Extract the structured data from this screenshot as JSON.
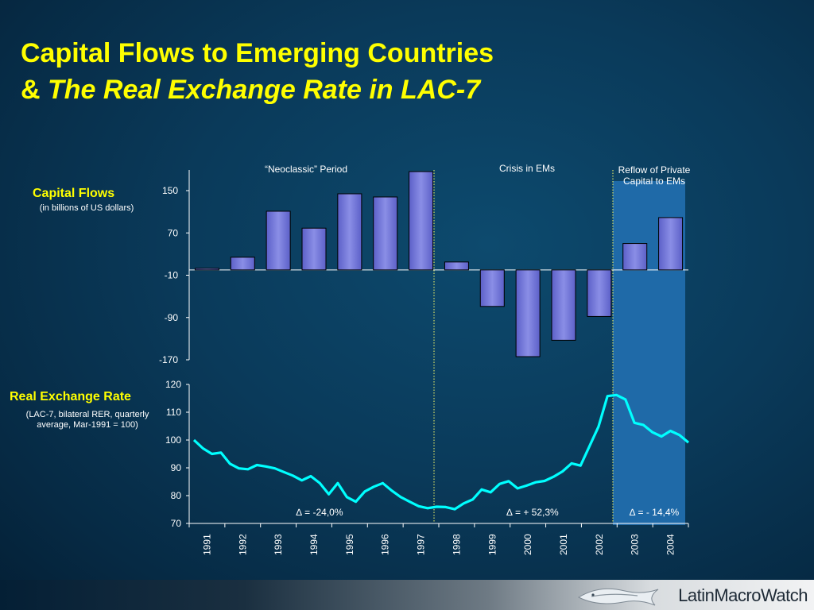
{
  "title": {
    "line1": "Capital Flows to Emerging Countries",
    "line2_prefix": "& ",
    "line2_italic": "The Real Exchange Rate in LAC-7"
  },
  "capital_flows_label": "Capital Flows",
  "capital_flows_note": "(in billions of US dollars)",
  "rer_label": "Real Exchange Rate",
  "rer_note_line1": "(LAC-7, bilateral RER, quarterly",
  "rer_note_line2": "average, Mar-1991 = 100)",
  "periods": {
    "neoclassic": "“Neoclassic” Period",
    "crisis": "Crisis in EMs",
    "reflow_line1": "Reflow of Private",
    "reflow_line2": "Capital to EMs"
  },
  "changes": {
    "p1": "∆ = -24,0%",
    "p2": "∆ = + 52,3%",
    "p3": "∆ = - 14,4%"
  },
  "logo": {
    "text": "LatinMacroWatch",
    "icon": "fish-logo-icon"
  },
  "colors": {
    "title": "#ffff00",
    "bar_fill": "#8a8ee6",
    "line": "#00ffff",
    "highlight": "#1f6aa8",
    "divider": "#ffff66"
  },
  "chart_data": [
    {
      "type": "bar",
      "categories": [
        "1991",
        "1992",
        "1993",
        "1994",
        "1995",
        "1996",
        "1997",
        "1998",
        "1999",
        "2000",
        "2001",
        "2002",
        "2003",
        "2004"
      ],
      "values": [
        3,
        24,
        111,
        79,
        144,
        138,
        186,
        15,
        -69,
        -164,
        -133,
        -88,
        50,
        99
      ],
      "ylim": [
        -170,
        186
      ],
      "yticks": [
        150,
        70,
        -10,
        -90,
        -170
      ],
      "ylabel": "Capital Flows",
      "grid": false
    },
    {
      "type": "line",
      "x": [
        "1991Q1",
        "1991Q2",
        "1991Q3",
        "1991Q4",
        "1992Q1",
        "1992Q2",
        "1992Q3",
        "1992Q4",
        "1993Q1",
        "1993Q2",
        "1993Q3",
        "1993Q4",
        "1994Q1",
        "1994Q2",
        "1994Q3",
        "1994Q4",
        "1995Q1",
        "1995Q2",
        "1995Q3",
        "1995Q4",
        "1996Q1",
        "1996Q2",
        "1996Q3",
        "1996Q4",
        "1997Q1",
        "1997Q2",
        "1997Q3",
        "1997Q4",
        "1998Q1",
        "1998Q2",
        "1998Q3",
        "1998Q4",
        "1999Q1",
        "1999Q2",
        "1999Q3",
        "1999Q4",
        "2000Q1",
        "2000Q2",
        "2000Q3",
        "2000Q4",
        "2001Q1",
        "2001Q2",
        "2001Q3",
        "2001Q4",
        "2002Q1",
        "2002Q2",
        "2002Q3",
        "2002Q4",
        "2003Q1",
        "2003Q2",
        "2003Q3",
        "2003Q4",
        "2004Q1",
        "2004Q2",
        "2004Q3",
        "2004Q4"
      ],
      "values": [
        100,
        97,
        95,
        95.5,
        91.5,
        89.8,
        89.5,
        91,
        90.5,
        89.8,
        88.5,
        87.2,
        85.5,
        87,
        84.5,
        80.5,
        84.5,
        79.5,
        77.8,
        81.5,
        83.2,
        84.5,
        81.8,
        79.5,
        77.8,
        76.2,
        75.5,
        76,
        75.9,
        75.1,
        77.2,
        78.6,
        82.2,
        81.2,
        84.2,
        85.2,
        82.6,
        83.6,
        84.8,
        85.3,
        86.8,
        88.7,
        91.6,
        90.8,
        97.8,
        104.8,
        115.8,
        116.2,
        114.6,
        106.2,
        105.4,
        102.8,
        101.3,
        103.3,
        101.8,
        99.1
      ],
      "ylim": [
        70,
        120
      ],
      "yticks": [
        120,
        110,
        100,
        90,
        80,
        70
      ],
      "ylabel": "Real Exchange Rate",
      "grid": false
    }
  ]
}
